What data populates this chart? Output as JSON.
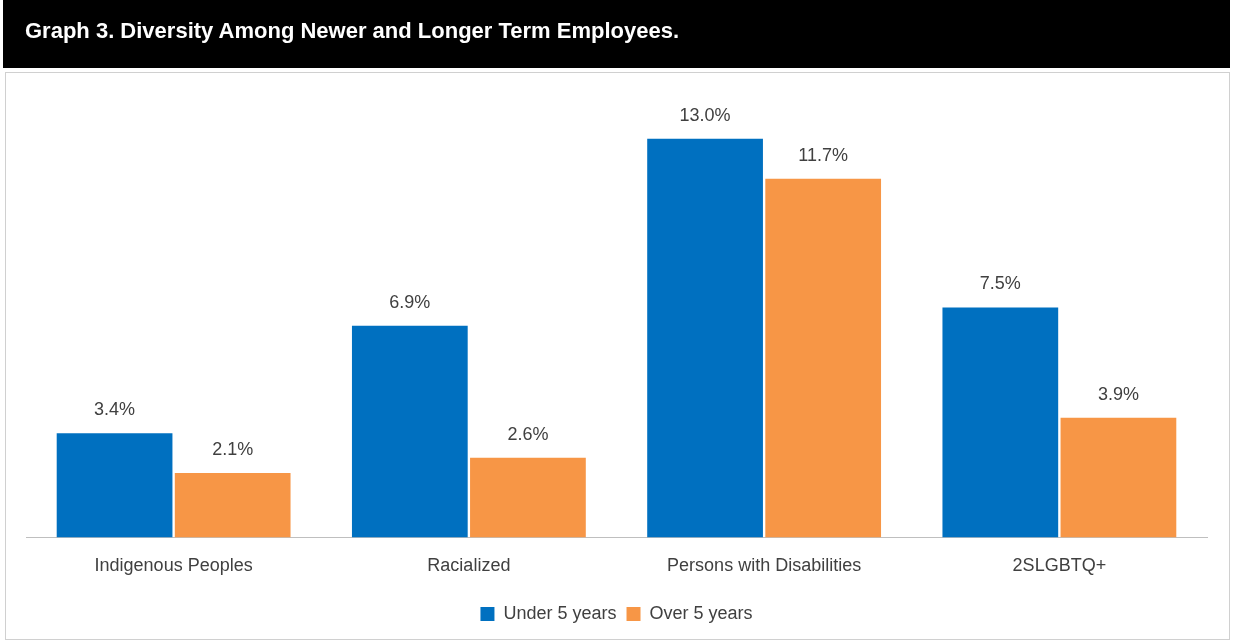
{
  "chart_data": {
    "type": "bar",
    "title": "Graph 3. Diversity Among Newer and Longer Term Employees.",
    "categories": [
      "Indigenous Peoples",
      "Racialized",
      "Persons with Disabilities",
      "2SLGBTQ+"
    ],
    "series": [
      {
        "name": "Under 5 years",
        "color": "#0070c0",
        "values": [
          3.4,
          6.9,
          13.0,
          7.5
        ],
        "value_labels": [
          "3.4%",
          "6.9%",
          "13.0%",
          "7.5%"
        ]
      },
      {
        "name": "Over 5 years",
        "color": "#f79646",
        "values": [
          2.1,
          2.6,
          11.7,
          3.9
        ],
        "value_labels": [
          "2.1%",
          "2.6%",
          "11.7%",
          "3.9%"
        ]
      }
    ],
    "legend": "bottom",
    "grid": false
  }
}
